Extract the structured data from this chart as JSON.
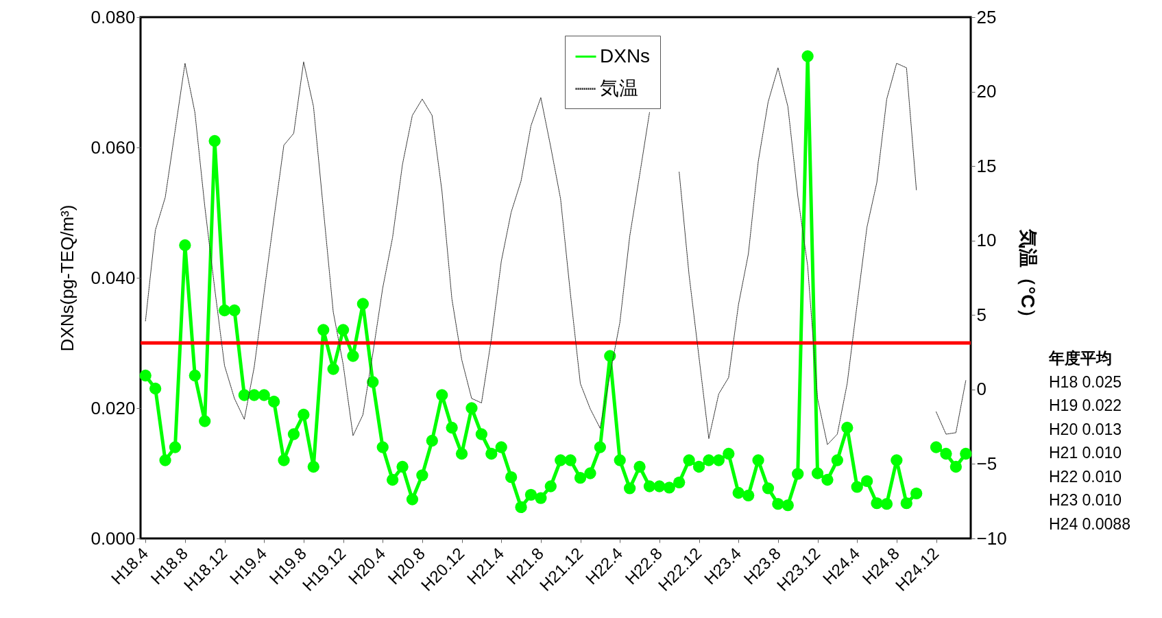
{
  "chart_data": {
    "type": "line",
    "ylabel": "DXNs(pg-TEQ/m³)",
    "y2label": "気温（°C）",
    "categories": [
      "H18.4",
      null,
      null,
      null,
      "H18.8",
      null,
      null,
      null,
      "H18.12",
      null,
      null,
      null,
      "H19.4",
      null,
      null,
      null,
      "H19.8",
      null,
      null,
      null,
      "H19.12",
      null,
      null,
      null,
      "H20.4",
      null,
      null,
      null,
      "H20.8",
      null,
      null,
      null,
      "H20.12",
      null,
      null,
      null,
      "H21.4",
      null,
      null,
      null,
      "H21.8",
      null,
      null,
      null,
      "H21.12",
      null,
      null,
      null,
      "H22.4",
      null,
      null,
      null,
      "H22.8",
      null,
      null,
      null,
      "H22.12",
      null,
      null,
      null,
      "H23.4",
      null,
      null,
      null,
      "H23.8",
      null,
      null,
      null,
      "H23.12",
      null,
      null,
      null,
      "H24.4",
      null,
      null,
      null,
      "H24.8",
      null,
      null,
      null,
      "H24.12",
      null,
      null,
      null
    ],
    "series": [
      {
        "name": "DXNs",
        "color": "#00ff00",
        "type": "line",
        "marker": "circle",
        "line_style": "solid",
        "values": [
          0.025,
          0.023,
          0.012,
          0.014,
          0.045,
          0.025,
          0.018,
          0.061,
          0.035,
          0.035,
          0.022,
          0.022,
          0.022,
          0.021,
          0.012,
          0.016,
          0.019,
          0.011,
          0.032,
          0.026,
          0.032,
          0.028,
          0.036,
          0.024,
          0.014,
          0.009,
          0.011,
          0.006,
          0.0097,
          0.015,
          0.022,
          0.017,
          0.013,
          0.02,
          0.016,
          0.013,
          0.014,
          0.0094,
          0.0048,
          0.0067,
          0.0062,
          0.008,
          0.012,
          0.012,
          0.0093,
          0.01,
          0.014,
          0.028,
          0.012,
          0.0077,
          0.011,
          0.008,
          0.008,
          0.0078,
          0.0086,
          0.012,
          0.011,
          0.012,
          0.012,
          0.013,
          0.007,
          0.0066,
          0.012,
          0.0077,
          0.0053,
          0.0051,
          0.0099,
          0.074,
          0.01,
          0.009,
          0.012,
          0.017,
          0.0079,
          0.0088,
          0.0054,
          0.0053,
          0.012,
          0.0054,
          0.0069,
          null,
          0.014,
          0.013,
          0.011,
          0.013
        ]
      },
      {
        "name": "気温",
        "color": "#333333",
        "type": "line",
        "marker": "none",
        "line_style": "dotted",
        "axis": "y2",
        "values": [
          4.6,
          10.7,
          12.9,
          17.4,
          21.9,
          18.6,
          12.3,
          6.8,
          1.6,
          -0.6,
          -2.0,
          1.5,
          6.5,
          11.5,
          16.4,
          17.2,
          22.0,
          19.0,
          12.1,
          5.2,
          1.7,
          -3.1,
          -1.7,
          2.4,
          6.8,
          10.2,
          15.1,
          18.4,
          19.5,
          18.4,
          13.3,
          6.1,
          2.0,
          -0.6,
          -0.9,
          3.4,
          8.6,
          11.9,
          14.0,
          17.7,
          19.6,
          16.3,
          12.8,
          6.4,
          0.4,
          -1.3,
          -2.6,
          1.0,
          4.5,
          10.3,
          14.4,
          18.6,
          null,
          null,
          14.6,
          7.7,
          2.2,
          -3.3,
          -0.3,
          0.8,
          5.7,
          9.1,
          15.3,
          19.3,
          21.6,
          19.0,
          13.0,
          8.3,
          -0.6,
          -3.7,
          -3.0,
          0.4,
          5.7,
          10.9,
          13.9,
          19.5,
          21.9,
          21.6,
          13.4,
          null,
          -1.5,
          -3.0,
          -2.9,
          0.6
        ]
      }
    ],
    "ylim": [
      0,
      0.08
    ],
    "yticks": [
      {
        "value": 0,
        "label": "0.000"
      },
      {
        "value": 0.02,
        "label": "0.020"
      },
      {
        "value": 0.04,
        "label": "0.040"
      },
      {
        "value": 0.06,
        "label": "0.060"
      },
      {
        "value": 0.08,
        "label": "0.080"
      }
    ],
    "y2lim": [
      -10,
      25
    ],
    "y2ticks": [
      {
        "value": -10,
        "label": "−10"
      },
      {
        "value": -5,
        "label": "−5"
      },
      0,
      5,
      10,
      15,
      20,
      25
    ],
    "ref_lines": [
      {
        "axis": "y",
        "value": 0.03,
        "color": "#ff0000"
      }
    ],
    "legend": "top",
    "grid": false,
    "annotations": [
      "年度平均",
      "H18 0.025",
      "H19 0.022",
      "H20 0.013",
      "H21 0.010",
      "H22 0.010",
      "H23 0.010",
      "H24 0.0088"
    ]
  }
}
